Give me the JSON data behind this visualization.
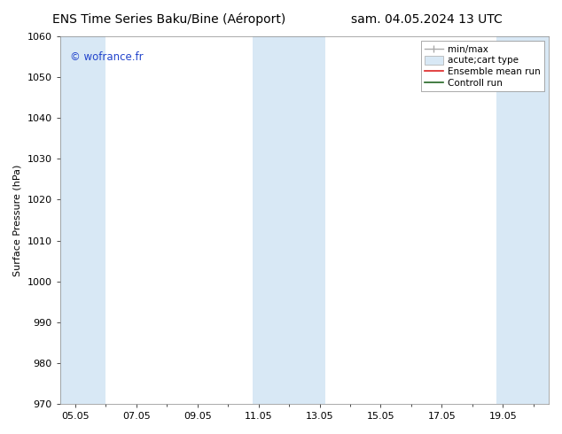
{
  "title_left": "ENS Time Series Baku/Bine (Aéroport)",
  "title_right": "sam. 04.05.2024 13 UTC",
  "ylabel": "Surface Pressure (hPa)",
  "ylim": [
    970,
    1060
  ],
  "yticks": [
    970,
    980,
    990,
    1000,
    1010,
    1020,
    1030,
    1040,
    1050,
    1060
  ],
  "xtick_labels": [
    "05.05",
    "07.05",
    "09.05",
    "11.05",
    "13.05",
    "15.05",
    "17.05",
    "19.05"
  ],
  "xtick_positions": [
    0,
    2,
    4,
    6,
    8,
    10,
    12,
    14
  ],
  "xlim": [
    -0.5,
    15.5
  ],
  "watermark": "© wofrance.fr",
  "watermark_color": "#2244cc",
  "bg_color": "#ffffff",
  "plot_bg_color": "#ffffff",
  "shaded_bands": [
    {
      "x_start": -0.5,
      "x_end": 1.0,
      "color": "#d8e8f5"
    },
    {
      "x_start": 5.8,
      "x_end": 8.2,
      "color": "#d8e8f5"
    },
    {
      "x_start": 13.8,
      "x_end": 15.5,
      "color": "#d8e8f5"
    }
  ],
  "grid_color": "#cccccc",
  "title_fontsize": 10,
  "tick_fontsize": 8,
  "legend_fontsize": 7.5
}
